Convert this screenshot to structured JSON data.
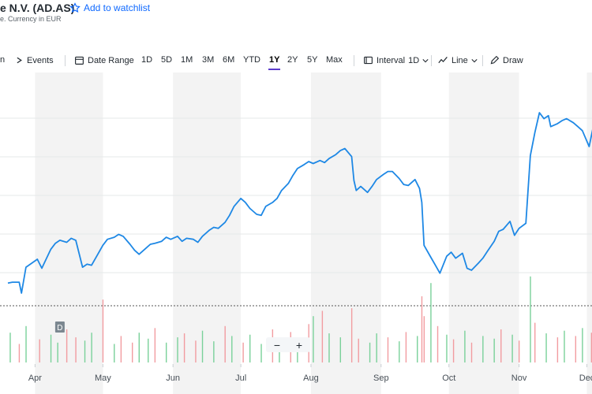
{
  "header": {
    "title": "e N.V. (AD.AS)",
    "watchlist_label": "Add to watchlist",
    "subtitle": "e. Currency in EUR"
  },
  "toolbar": {
    "left_partial": "n",
    "events_label": "Events",
    "date_range_label": "Date Range",
    "ranges": [
      "1D",
      "5D",
      "1M",
      "3M",
      "6M",
      "YTD",
      "1Y",
      "2Y",
      "5Y",
      "Max"
    ],
    "active_range": "1Y",
    "interval_label": "Interval",
    "interval_value": "1D",
    "charttype_label": "Line",
    "draw_label": "Draw"
  },
  "dividend_marker": "D",
  "zoom": {
    "minus": "−",
    "plus": "+"
  },
  "colors": {
    "line": "#1e88e5",
    "vol_up": "#7ad19a",
    "vol_down": "#f29ca0",
    "band": "#f3f3f3"
  },
  "chart_data": {
    "type": "line",
    "x_ticks": [
      "Apr",
      "May",
      "Jun",
      "Jul",
      "Aug",
      "Sep",
      "Oct",
      "Nov",
      "Dec"
    ],
    "price_series": [
      {
        "x": "2024-03-20",
        "y": 0.27
      },
      {
        "x": "2024-03-22",
        "y": 0.28
      },
      {
        "x": "2024-03-25",
        "y": 0.28
      },
      {
        "x": "2024-03-26",
        "y": 0.17
      },
      {
        "x": "2024-03-28",
        "y": 0.43
      },
      {
        "x": "2024-04-02",
        "y": 0.51
      },
      {
        "x": "2024-04-04",
        "y": 0.42
      },
      {
        "x": "2024-04-08",
        "y": 0.61
      },
      {
        "x": "2024-04-10",
        "y": 0.67
      },
      {
        "x": "2024-04-12",
        "y": 0.7
      },
      {
        "x": "2024-04-15",
        "y": 0.68
      },
      {
        "x": "2024-04-17",
        "y": 0.72
      },
      {
        "x": "2024-04-19",
        "y": 0.7
      },
      {
        "x": "2024-04-22",
        "y": 0.43
      },
      {
        "x": "2024-04-24",
        "y": 0.46
      },
      {
        "x": "2024-04-26",
        "y": 0.45
      },
      {
        "x": "2024-04-29",
        "y": 0.57
      },
      {
        "x": "2024-05-01",
        "y": 0.65
      },
      {
        "x": "2024-05-03",
        "y": 0.71
      },
      {
        "x": "2024-05-06",
        "y": 0.73
      },
      {
        "x": "2024-05-08",
        "y": 0.76
      },
      {
        "x": "2024-05-10",
        "y": 0.74
      },
      {
        "x": "2024-05-13",
        "y": 0.66
      },
      {
        "x": "2024-05-15",
        "y": 0.6
      },
      {
        "x": "2024-05-17",
        "y": 0.56
      },
      {
        "x": "2024-05-20",
        "y": 0.62
      },
      {
        "x": "2024-05-22",
        "y": 0.66
      },
      {
        "x": "2024-05-24",
        "y": 0.67
      },
      {
        "x": "2024-05-27",
        "y": 0.69
      },
      {
        "x": "2024-05-29",
        "y": 0.73
      },
      {
        "x": "2024-05-31",
        "y": 0.71
      },
      {
        "x": "2024-06-03",
        "y": 0.74
      },
      {
        "x": "2024-06-05",
        "y": 0.69
      },
      {
        "x": "2024-06-07",
        "y": 0.72
      },
      {
        "x": "2024-06-10",
        "y": 0.71
      },
      {
        "x": "2024-06-12",
        "y": 0.68
      },
      {
        "x": "2024-06-14",
        "y": 0.74
      },
      {
        "x": "2024-06-17",
        "y": 0.8
      },
      {
        "x": "2024-06-19",
        "y": 0.83
      },
      {
        "x": "2024-06-21",
        "y": 0.82
      },
      {
        "x": "2024-06-24",
        "y": 0.88
      },
      {
        "x": "2024-06-26",
        "y": 0.95
      },
      {
        "x": "2024-06-28",
        "y": 1.04
      },
      {
        "x": "2024-07-01",
        "y": 1.12
      },
      {
        "x": "2024-07-03",
        "y": 1.08
      },
      {
        "x": "2024-07-05",
        "y": 1.02
      },
      {
        "x": "2024-07-08",
        "y": 0.96
      },
      {
        "x": "2024-07-10",
        "y": 0.95
      },
      {
        "x": "2024-07-12",
        "y": 1.04
      },
      {
        "x": "2024-07-15",
        "y": 1.08
      },
      {
        "x": "2024-07-17",
        "y": 1.12
      },
      {
        "x": "2024-07-19",
        "y": 1.2
      },
      {
        "x": "2024-07-22",
        "y": 1.27
      },
      {
        "x": "2024-07-24",
        "y": 1.35
      },
      {
        "x": "2024-07-26",
        "y": 1.42
      },
      {
        "x": "2024-07-29",
        "y": 1.46
      },
      {
        "x": "2024-07-31",
        "y": 1.49
      },
      {
        "x": "2024-08-02",
        "y": 1.47
      },
      {
        "x": "2024-08-05",
        "y": 1.5
      },
      {
        "x": "2024-08-07",
        "y": 1.48
      },
      {
        "x": "2024-08-09",
        "y": 1.52
      },
      {
        "x": "2024-08-12",
        "y": 1.56
      },
      {
        "x": "2024-08-14",
        "y": 1.6
      },
      {
        "x": "2024-08-16",
        "y": 1.62
      },
      {
        "x": "2024-08-19",
        "y": 1.54
      },
      {
        "x": "2024-08-20",
        "y": 1.3
      },
      {
        "x": "2024-08-21",
        "y": 1.2
      },
      {
        "x": "2024-08-23",
        "y": 1.24
      },
      {
        "x": "2024-08-26",
        "y": 1.18
      },
      {
        "x": "2024-08-28",
        "y": 1.24
      },
      {
        "x": "2024-08-30",
        "y": 1.31
      },
      {
        "x": "2024-09-02",
        "y": 1.36
      },
      {
        "x": "2024-09-04",
        "y": 1.39
      },
      {
        "x": "2024-09-06",
        "y": 1.39
      },
      {
        "x": "2024-09-09",
        "y": 1.32
      },
      {
        "x": "2024-09-11",
        "y": 1.26
      },
      {
        "x": "2024-09-13",
        "y": 1.25
      },
      {
        "x": "2024-09-16",
        "y": 1.31
      },
      {
        "x": "2024-09-18",
        "y": 1.22
      },
      {
        "x": "2024-09-19",
        "y": 1.08
      },
      {
        "x": "2024-09-20",
        "y": 0.65
      },
      {
        "x": "2024-09-23",
        "y": 0.53
      },
      {
        "x": "2024-09-25",
        "y": 0.45
      },
      {
        "x": "2024-09-27",
        "y": 0.37
      },
      {
        "x": "2024-09-30",
        "y": 0.54
      },
      {
        "x": "2024-10-02",
        "y": 0.58
      },
      {
        "x": "2024-10-04",
        "y": 0.52
      },
      {
        "x": "2024-10-07",
        "y": 0.57
      },
      {
        "x": "2024-10-09",
        "y": 0.42
      },
      {
        "x": "2024-10-11",
        "y": 0.4
      },
      {
        "x": "2024-10-14",
        "y": 0.47
      },
      {
        "x": "2024-10-16",
        "y": 0.52
      },
      {
        "x": "2024-10-18",
        "y": 0.59
      },
      {
        "x": "2024-10-21",
        "y": 0.69
      },
      {
        "x": "2024-10-23",
        "y": 0.79
      },
      {
        "x": "2024-10-25",
        "y": 0.81
      },
      {
        "x": "2024-10-28",
        "y": 0.89
      },
      {
        "x": "2024-10-30",
        "y": 0.75
      },
      {
        "x": "2024-11-01",
        "y": 0.82
      },
      {
        "x": "2024-11-04",
        "y": 0.87
      },
      {
        "x": "2024-11-06",
        "y": 1.55
      },
      {
        "x": "2024-11-08",
        "y": 1.78
      },
      {
        "x": "2024-11-10",
        "y": 1.98
      },
      {
        "x": "2024-11-12",
        "y": 1.92
      },
      {
        "x": "2024-11-14",
        "y": 1.95
      },
      {
        "x": "2024-11-15",
        "y": 1.84
      },
      {
        "x": "2024-11-18",
        "y": 1.87
      },
      {
        "x": "2024-11-20",
        "y": 1.9
      },
      {
        "x": "2024-11-22",
        "y": 1.92
      },
      {
        "x": "2024-11-25",
        "y": 1.88
      },
      {
        "x": "2024-11-27",
        "y": 1.84
      },
      {
        "x": "2024-11-29",
        "y": 1.8
      },
      {
        "x": "2024-12-02",
        "y": 1.64
      },
      {
        "x": "2024-12-04",
        "y": 1.86
      }
    ],
    "volume": [
      {
        "x": "2024-03-21",
        "v": 0.45,
        "up": true
      },
      {
        "x": "2024-03-25",
        "v": 0.28,
        "up": false
      },
      {
        "x": "2024-03-28",
        "v": 0.55,
        "up": true
      },
      {
        "x": "2024-04-03",
        "v": 0.35,
        "up": false
      },
      {
        "x": "2024-04-08",
        "v": 0.42,
        "up": true
      },
      {
        "x": "2024-04-11",
        "v": 0.3,
        "up": true
      },
      {
        "x": "2024-04-15",
        "v": 0.5,
        "up": false
      },
      {
        "x": "2024-04-19",
        "v": 0.38,
        "up": false
      },
      {
        "x": "2024-04-23",
        "v": 0.33,
        "up": true
      },
      {
        "x": "2024-04-26",
        "v": 0.45,
        "up": true
      },
      {
        "x": "2024-05-01",
        "v": 0.95,
        "up": false
      },
      {
        "x": "2024-05-06",
        "v": 0.28,
        "up": true
      },
      {
        "x": "2024-05-09",
        "v": 0.4,
        "up": false
      },
      {
        "x": "2024-05-14",
        "v": 0.3,
        "up": false
      },
      {
        "x": "2024-05-17",
        "v": 0.45,
        "up": true
      },
      {
        "x": "2024-05-21",
        "v": 0.36,
        "up": true
      },
      {
        "x": "2024-05-24",
        "v": 0.52,
        "up": false
      },
      {
        "x": "2024-05-29",
        "v": 0.3,
        "up": true
      },
      {
        "x": "2024-06-03",
        "v": 0.38,
        "up": true
      },
      {
        "x": "2024-06-06",
        "v": 0.44,
        "up": false
      },
      {
        "x": "2024-06-11",
        "v": 0.33,
        "up": false
      },
      {
        "x": "2024-06-14",
        "v": 0.48,
        "up": true
      },
      {
        "x": "2024-06-19",
        "v": 0.32,
        "up": true
      },
      {
        "x": "2024-06-24",
        "v": 0.55,
        "up": false
      },
      {
        "x": "2024-06-27",
        "v": 0.4,
        "up": true
      },
      {
        "x": "2024-07-02",
        "v": 0.3,
        "up": false
      },
      {
        "x": "2024-07-05",
        "v": 0.42,
        "up": true
      },
      {
        "x": "2024-07-10",
        "v": 0.28,
        "up": true
      },
      {
        "x": "2024-07-15",
        "v": 0.5,
        "up": false
      },
      {
        "x": "2024-07-18",
        "v": 0.36,
        "up": true
      },
      {
        "x": "2024-07-23",
        "v": 0.46,
        "up": false
      },
      {
        "x": "2024-07-26",
        "v": 0.34,
        "up": true
      },
      {
        "x": "2024-07-31",
        "v": 0.58,
        "up": false
      },
      {
        "x": "2024-08-02",
        "v": 0.7,
        "up": true
      },
      {
        "x": "2024-08-06",
        "v": 0.78,
        "up": false
      },
      {
        "x": "2024-08-09",
        "v": 0.44,
        "up": true
      },
      {
        "x": "2024-08-14",
        "v": 0.38,
        "up": true
      },
      {
        "x": "2024-08-19",
        "v": 0.82,
        "up": false
      },
      {
        "x": "2024-08-22",
        "v": 0.36,
        "up": false
      },
      {
        "x": "2024-08-27",
        "v": 0.3,
        "up": true
      },
      {
        "x": "2024-08-30",
        "v": 0.44,
        "up": true
      },
      {
        "x": "2024-09-04",
        "v": 0.38,
        "up": false
      },
      {
        "x": "2024-09-09",
        "v": 0.32,
        "up": true
      },
      {
        "x": "2024-09-12",
        "v": 0.46,
        "up": false
      },
      {
        "x": "2024-09-17",
        "v": 0.4,
        "up": true
      },
      {
        "x": "2024-09-19",
        "v": 1.0,
        "up": false
      },
      {
        "x": "2024-09-20",
        "v": 0.7,
        "up": false
      },
      {
        "x": "2024-09-23",
        "v": 1.2,
        "up": true
      },
      {
        "x": "2024-09-26",
        "v": 0.55,
        "up": false
      },
      {
        "x": "2024-09-30",
        "v": 0.42,
        "up": true
      },
      {
        "x": "2024-10-03",
        "v": 0.35,
        "up": false
      },
      {
        "x": "2024-10-08",
        "v": 0.48,
        "up": true
      },
      {
        "x": "2024-10-11",
        "v": 0.3,
        "up": false
      },
      {
        "x": "2024-10-16",
        "v": 0.4,
        "up": true
      },
      {
        "x": "2024-10-21",
        "v": 0.36,
        "up": true
      },
      {
        "x": "2024-10-24",
        "v": 0.5,
        "up": false
      },
      {
        "x": "2024-10-29",
        "v": 0.42,
        "up": true
      },
      {
        "x": "2024-11-01",
        "v": 0.33,
        "up": false
      },
      {
        "x": "2024-11-06",
        "v": 1.3,
        "up": true
      },
      {
        "x": "2024-11-08",
        "v": 0.6,
        "up": false
      },
      {
        "x": "2024-11-13",
        "v": 0.44,
        "up": true
      },
      {
        "x": "2024-11-18",
        "v": 0.38,
        "up": false
      },
      {
        "x": "2024-11-21",
        "v": 0.48,
        "up": true
      },
      {
        "x": "2024-11-26",
        "v": 0.4,
        "up": false
      },
      {
        "x": "2024-11-29",
        "v": 0.52,
        "up": true
      },
      {
        "x": "2024-12-03",
        "v": 0.45,
        "up": false
      }
    ],
    "dividend_date": "2024-04-12",
    "grid": true,
    "legend": "none"
  }
}
